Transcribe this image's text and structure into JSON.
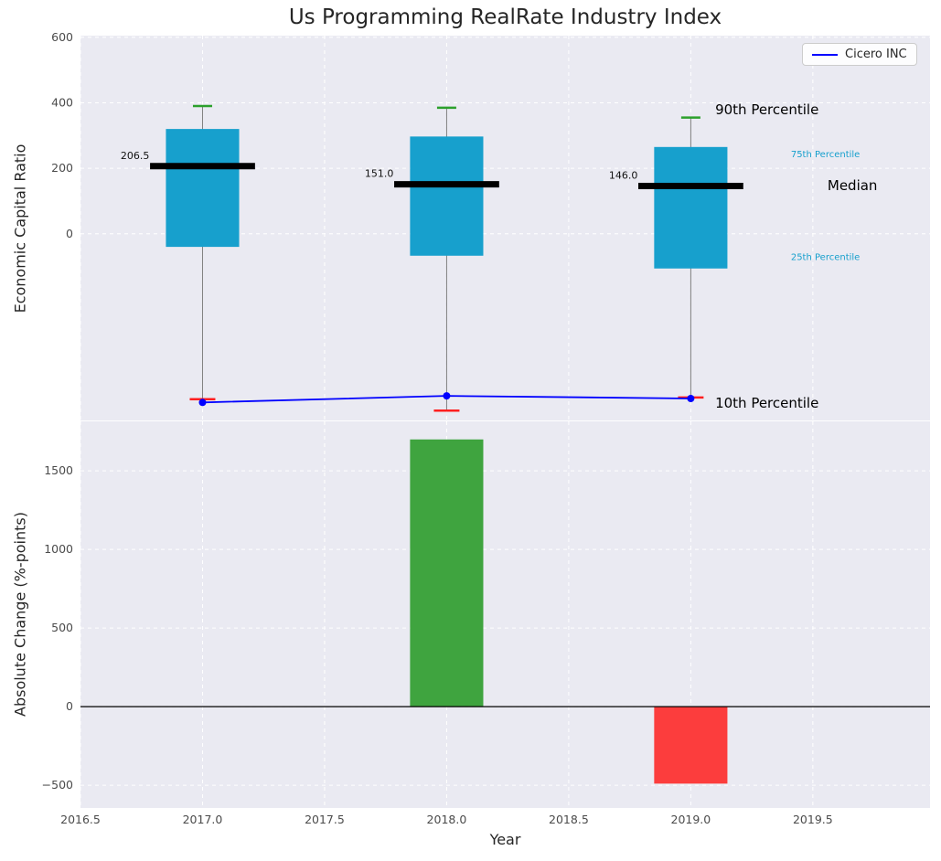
{
  "chart_data": {
    "type": "boxplot",
    "title": "Us Programming RealRate Industry Index",
    "xlabel": "Year",
    "xlim": [
      2016.5,
      2019.98
    ],
    "xticks": [
      2016.5,
      2017.0,
      2017.5,
      2018.0,
      2018.5,
      2019.0,
      2019.5
    ],
    "grid": true,
    "top_panel": {
      "ylabel": "Economic Capital Ratio",
      "ylim": [
        -570,
        605
      ],
      "yticks": [
        0,
        200,
        400,
        600
      ],
      "years": [
        2017,
        2018,
        2019
      ],
      "p90": [
        390,
        385,
        355
      ],
      "p75": [
        320,
        297,
        265
      ],
      "median": [
        206.5,
        151.0,
        146.0
      ],
      "p25": [
        -40,
        -67,
        -106
      ],
      "p10": [
        -505,
        -540,
        -500
      ],
      "series": [
        {
          "name": "Cicero INC",
          "values": [
            -515,
            -495,
            -503
          ]
        }
      ],
      "box_width": 0.3,
      "median_width": 0.43,
      "annotations": [
        {
          "text": "90th Percentile",
          "x": 2019.1,
          "y": 379,
          "color": "#000000",
          "size": 15
        },
        {
          "text": "75th Percentile",
          "x": 2019.41,
          "y": 243,
          "color": "#17a0cd",
          "size": 10
        },
        {
          "text": "Median",
          "x": 2019.56,
          "y": 148,
          "color": "#000000",
          "size": 15
        },
        {
          "text": "25th Percentile",
          "x": 2019.41,
          "y": -70,
          "color": "#17a0cd",
          "size": 10
        },
        {
          "text": "10th Percentile",
          "x": 2019.1,
          "y": -516,
          "color": "#000000",
          "size": 15
        }
      ]
    },
    "bottom_panel": {
      "ylabel": "Absolute Change (%-points)",
      "ylim": [
        -645,
        1815
      ],
      "yticks": [
        -500,
        0,
        500,
        1000,
        1500
      ],
      "bars": [
        {
          "year": 2018,
          "value": 1700,
          "color": "#3fa43f"
        },
        {
          "year": 2019,
          "value": -490,
          "color": "#fc3d3d"
        }
      ],
      "bar_width": 0.3
    },
    "legend": {
      "label": "Cicero INC",
      "position": "upper right"
    },
    "colors": {
      "panel_bg": "#eaeaf2",
      "grid": "#ffffff",
      "box": "#17a0cd",
      "whisker": "#7f7f7f",
      "median": "#000000",
      "p90_cap": "#2ca02c",
      "p10_cap": "#ff1f1f",
      "cicero": "#0000ff",
      "tick": "#4b4b4b",
      "median_label": "#111111"
    }
  }
}
